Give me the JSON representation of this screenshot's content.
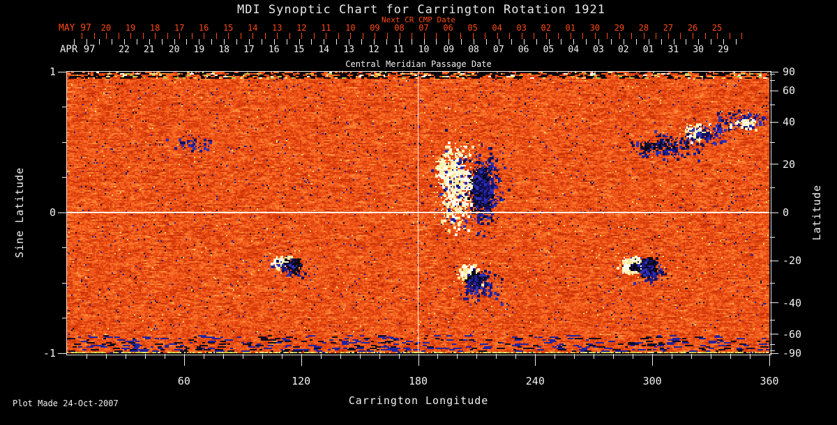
{
  "title": "MDI Synoptic Chart for Carrington Rotation 1921",
  "footer": "Plot Made 24-Oct-2007",
  "axes": {
    "next_cr": {
      "label": "Next CR CMP Date",
      "month": "MAY 97",
      "ticks": [
        "20",
        "19",
        "18",
        "17",
        "16",
        "15",
        "14",
        "13",
        "12",
        "11",
        "10",
        "09",
        "08",
        "07",
        "06",
        "05",
        "04",
        "03",
        "02",
        "01",
        "30",
        "29",
        "28",
        "27",
        "26",
        "25"
      ]
    },
    "cmp": {
      "label": "Central Meridian Passage Date",
      "month": "APR 97",
      "ticks": [
        "22",
        "21",
        "20",
        "19",
        "18",
        "17",
        "16",
        "15",
        "14",
        "13",
        "12",
        "11",
        "10",
        "09",
        "08",
        "07",
        "06",
        "05",
        "04",
        "03",
        "02",
        "01",
        "31",
        "30",
        "29"
      ]
    },
    "longitude": {
      "label": "Carrington Longitude",
      "ticks": [
        "60",
        "120",
        "180",
        "240",
        "300",
        "360"
      ],
      "range": [
        0,
        360
      ],
      "minor_step": 10
    },
    "sine_latitude": {
      "label": "Sine Latitude",
      "ticks": [
        "1",
        "0",
        "-1"
      ],
      "minor_ticks": [
        0.75,
        0.5,
        0.25,
        -0.25,
        -0.5,
        -0.75
      ],
      "range": [
        -1,
        1
      ]
    },
    "latitude": {
      "label": "Latitude",
      "ticks": [
        "90",
        "60",
        "40",
        "20",
        "0",
        "-20",
        "-40",
        "-60",
        "-90"
      ],
      "minor_ticks": [
        80,
        70,
        50,
        30,
        10,
        -10,
        -30,
        -50,
        -70,
        -80
      ]
    }
  },
  "colors": {
    "background": "#000000",
    "text_white": "#f0f0f0",
    "title_grey": "#e9e9e9",
    "axis_red": "#ff4a14",
    "grid_white": "#ffffff",
    "map_palette": [
      "#8c1900",
      "#b92804",
      "#eb4b12",
      "#fc782d",
      "#ffaa50",
      "#ffd782"
    ],
    "positive_field_bright": "#fffff8",
    "negative_field_dark": "#05050e",
    "negative_field_navy": "#1e1e96",
    "south_edge_line": "#cdc33c"
  },
  "chart_data": {
    "type": "heatmap",
    "title": "MDI Synoptic Chart for Carrington Rotation 1921",
    "xlabel": "Carrington Longitude",
    "ylabel_left": "Sine Latitude",
    "ylabel_right": "Latitude",
    "x_range": [
      0,
      360
    ],
    "y_range_sine_latitude": [
      -1,
      1
    ],
    "x_ticks": [
      60,
      120,
      180,
      240,
      300,
      360
    ],
    "left_ticks_sine_latitude": [
      1,
      0,
      -1
    ],
    "right_ticks_latitude": [
      90,
      60,
      40,
      20,
      0,
      -20,
      -40,
      -60,
      -90
    ],
    "next_cr_cmp_dates_may97": [
      "20",
      "19",
      "18",
      "17",
      "16",
      "15",
      "14",
      "13",
      "12",
      "11",
      "10",
      "09",
      "08",
      "07",
      "06",
      "05",
      "04",
      "03",
      "02",
      "01",
      "30",
      "29",
      "28",
      "27",
      "26",
      "25"
    ],
    "cmp_dates_apr97": [
      "22",
      "21",
      "20",
      "19",
      "18",
      "17",
      "16",
      "15",
      "14",
      "13",
      "12",
      "11",
      "10",
      "09",
      "08",
      "07",
      "06",
      "05",
      "04",
      "03",
      "02",
      "01",
      "31",
      "30",
      "29"
    ],
    "reference_lines": {
      "longitude": 180,
      "sine_latitude": 0
    },
    "colormap_semantics": {
      "quiet_sun_background": "orange-red speckle noise",
      "positive_magnetic_field": "white / pale yellow patches",
      "negative_magnetic_field": "black / navy-blue patches",
      "polar_rows": "noisy streaked bands at top and bottom edges"
    },
    "active_regions": [
      {
        "name": "faint scattered flux",
        "lon": 64,
        "sine_lat": 0.5,
        "clusters": [
          {
            "kind": "navy",
            "dx": 0,
            "dy": 0,
            "sx": 28,
            "sy": 12,
            "n": 45
          }
        ]
      },
      {
        "name": "small bipolar region (south)",
        "lon": 113,
        "sine_lat": -0.36,
        "clusters": [
          {
            "kind": "bright",
            "dx": -8,
            "dy": -2,
            "sx": 12,
            "sy": 9,
            "n": 130
          },
          {
            "kind": "dark",
            "dx": 5,
            "dy": 2,
            "sx": 11,
            "sy": 9,
            "n": 140
          },
          {
            "kind": "navy",
            "dx": 2,
            "dy": 5,
            "sx": 30,
            "sy": 14,
            "n": 55
          }
        ]
      },
      {
        "name": "large dispersed active region (north of equator)",
        "lon": 205,
        "sine_lat": 0.21,
        "clusters": [
          {
            "kind": "bright",
            "dx": -18,
            "dy": 2,
            "sx": 22,
            "sy": 52,
            "n": 620
          },
          {
            "kind": "bright",
            "dx": -32,
            "dy": -22,
            "sx": 14,
            "sy": 16,
            "n": 130
          },
          {
            "kind": "dark",
            "dx": 20,
            "dy": 10,
            "sx": 14,
            "sy": 36,
            "n": 420
          },
          {
            "kind": "navy",
            "dx": 24,
            "dy": 8,
            "sx": 20,
            "sy": 48,
            "n": 330
          },
          {
            "kind": "navy",
            "dx": 2,
            "dy": 6,
            "sx": 60,
            "sy": 62,
            "n": 150
          }
        ]
      },
      {
        "name": "bipolar region (south, center)",
        "lon": 209,
        "sine_lat": -0.48,
        "clusters": [
          {
            "kind": "bright",
            "dx": -11,
            "dy": -10,
            "sx": 14,
            "sy": 11,
            "n": 180
          },
          {
            "kind": "dark",
            "dx": 0,
            "dy": -2,
            "sx": 11,
            "sy": 9,
            "n": 180
          },
          {
            "kind": "navy",
            "dx": 5,
            "dy": 8,
            "sx": 26,
            "sy": 22,
            "n": 150
          }
        ]
      },
      {
        "name": "bipolar region with bright plage (south-west)",
        "lon": 293,
        "sine_lat": -0.37,
        "clusters": [
          {
            "kind": "bright",
            "dx": -12,
            "dy": 0,
            "sx": 13,
            "sy": 11,
            "n": 280
          },
          {
            "kind": "dark",
            "dx": -10,
            "dy": 2,
            "sx": 5,
            "sy": 4,
            "n": 60
          },
          {
            "kind": "dark",
            "dx": 11,
            "dy": 3,
            "sx": 11,
            "sy": 10,
            "n": 260
          },
          {
            "kind": "navy",
            "dx": 14,
            "dy": 7,
            "sx": 22,
            "sy": 16,
            "n": 90
          }
        ]
      },
      {
        "name": "decayed region (north-west)",
        "lon": 306,
        "sine_lat": 0.47,
        "clusters": [
          {
            "kind": "navy",
            "dx": 0,
            "dy": 0,
            "sx": 44,
            "sy": 16,
            "n": 170
          },
          {
            "kind": "dark",
            "dx": -8,
            "dy": -3,
            "sx": 30,
            "sy": 10,
            "n": 55
          }
        ]
      },
      {
        "name": "plage with scattered flux (north-west)",
        "lon": 322,
        "sine_lat": 0.58,
        "clusters": [
          {
            "kind": "bright",
            "dx": 0,
            "dy": 0,
            "sx": 16,
            "sy": 11,
            "n": 120
          },
          {
            "kind": "navy",
            "dx": 14,
            "dy": 3,
            "sx": 32,
            "sy": 13,
            "n": 110
          }
        ]
      },
      {
        "name": "scattered flux near NW edge",
        "lon": 346,
        "sine_lat": 0.66,
        "clusters": [
          {
            "kind": "navy",
            "dx": 0,
            "dy": 0,
            "sx": 36,
            "sy": 13,
            "n": 130
          },
          {
            "kind": "bright",
            "dx": 6,
            "dy": 3,
            "sx": 18,
            "sy": 8,
            "n": 45
          }
        ]
      }
    ]
  }
}
